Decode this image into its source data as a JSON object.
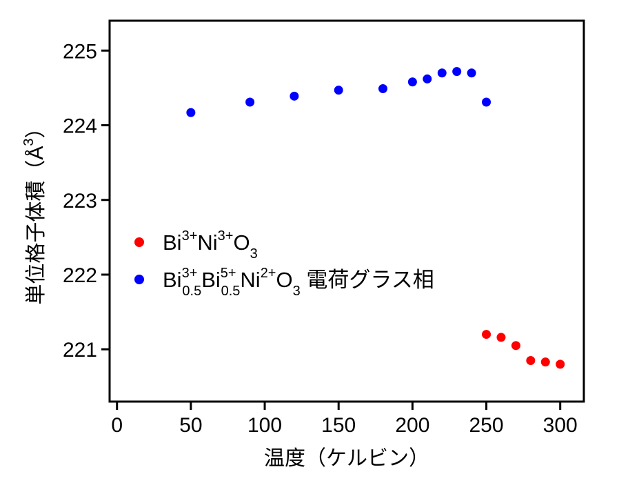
{
  "chart_data": {
    "type": "scatter",
    "xlabel": "温度（ケルビン）",
    "ylabel": "単位格子体積（Å³）",
    "ylabel_unit_base": "Å",
    "ylabel_unit_exp": "3",
    "xlim": [
      -5,
      316
    ],
    "ylim": [
      220.3,
      225.4
    ],
    "xticks": [
      0,
      50,
      100,
      150,
      200,
      250,
      300
    ],
    "yticks": [
      221,
      222,
      223,
      224,
      225
    ],
    "grid": false,
    "legend_position": "center-left",
    "series": [
      {
        "name": "Bi3+Ni3+O3",
        "color": "#ff0000",
        "x": [
          250,
          260,
          270,
          280,
          290,
          300
        ],
        "y": [
          221.2,
          221.16,
          221.05,
          220.85,
          220.83,
          220.8
        ]
      },
      {
        "name": "Bi3+0.5Bi5+0.5Ni2+O3 電荷グラス相",
        "color": "#0000ff",
        "x": [
          50,
          90,
          120,
          150,
          180,
          200,
          210,
          220,
          230,
          240,
          250
        ],
        "y": [
          224.17,
          224.31,
          224.39,
          224.47,
          224.49,
          224.58,
          224.62,
          224.7,
          224.72,
          224.7,
          224.31
        ]
      }
    ]
  },
  "legend": [
    {
      "parts": [
        {
          "t": "Bi",
          "s": "n"
        },
        {
          "t": "3+",
          "s": "sup"
        },
        {
          "t": "Ni",
          "s": "n"
        },
        {
          "t": "3+",
          "s": "sup"
        },
        {
          "t": "O",
          "s": "n"
        },
        {
          "t": "3",
          "s": "sub"
        }
      ]
    },
    {
      "parts": [
        {
          "t": "Bi",
          "s": "n"
        },
        {
          "t": "3+",
          "s": "sup"
        },
        {
          "t": "0.5",
          "s": "sub"
        },
        {
          "t": "Bi",
          "s": "n"
        },
        {
          "t": "5+",
          "s": "sup"
        },
        {
          "t": "0.5",
          "s": "sub"
        },
        {
          "t": "Ni",
          "s": "n"
        },
        {
          "t": "2+",
          "s": "sup"
        },
        {
          "t": "O",
          "s": "n"
        },
        {
          "t": "3",
          "s": "sub"
        },
        {
          "t": " 電荷グラス相",
          "s": "n"
        }
      ]
    }
  ]
}
